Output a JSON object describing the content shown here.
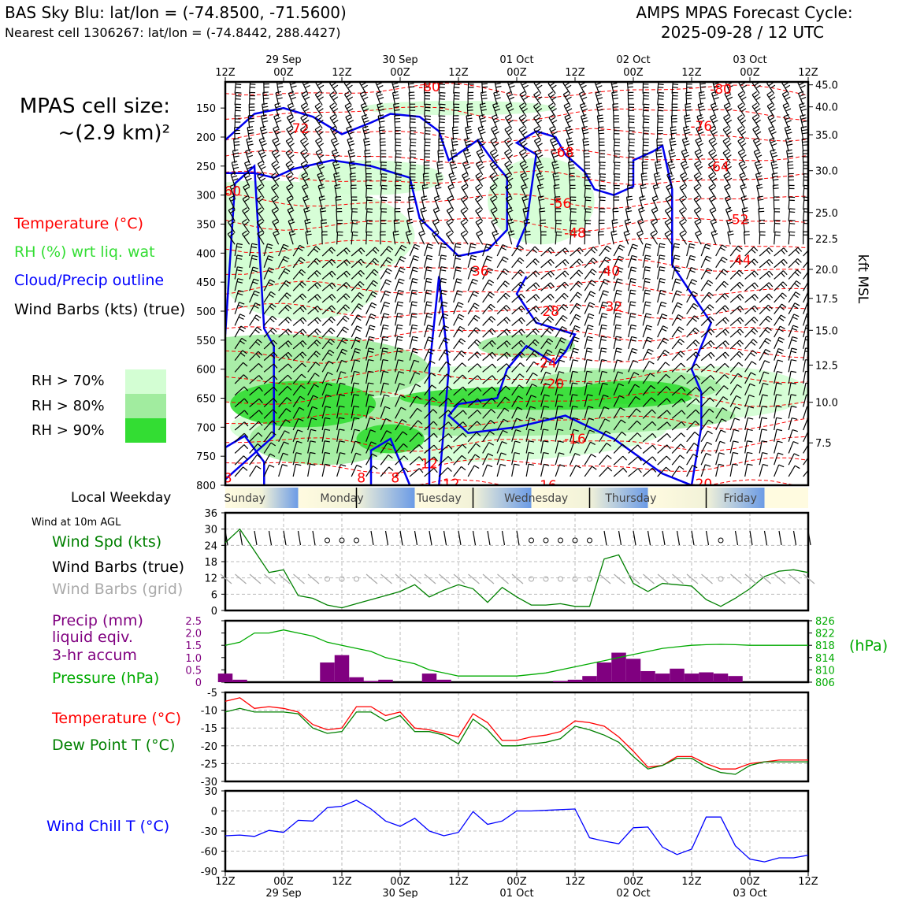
{
  "header": {
    "station": "BAS Sky Blu: lat/lon = (-74.8500, -71.5600)",
    "nearest": "Nearest cell 1306267: lat/lon = (-74.8442, 288.4427)",
    "model_line1": "AMPS MPAS Forecast Cycle:",
    "model_line2": "2025-09-28 / 12 UTC"
  },
  "cell_size": {
    "line1": "MPAS cell size:",
    "line2": "~(2.9 km)²"
  },
  "legend": {
    "temperature": "Temperature (°C)",
    "rh": "RH (%) wrt liq. wat",
    "cloud": "Cloud/Precip outline",
    "wind": "Wind Barbs (kts) (true)",
    "rh70": "RH > 70%",
    "rh80": "RH > 80%",
    "rh90": "RH > 90%",
    "rh70_color": "#d3fed3",
    "rh80_color": "#a1ec9f",
    "rh90_color": "#33dd33"
  },
  "weekday": {
    "label": "Local Weekday",
    "days": [
      "Sunday",
      "Monday",
      "Tuesday",
      "Wednesday",
      "Thursday",
      "Friday"
    ]
  },
  "panel_labels": {
    "wind_at": "Wind at 10m AGL",
    "wind_spd": "Wind Spd (kts)",
    "barbs_true": "Wind Barbs (true)",
    "barbs_grid": "Wind Barbs (grid)",
    "precip1": "Precip (mm)",
    "precip2": "liquid eqiv.",
    "precip3": "3-hr accum",
    "pressure": "Pressure (hPa)",
    "pressure_unit": "(hPa)",
    "temp": "Temperature (°C)",
    "dew": "Dew Point T (°C)",
    "windchill": "Wind Chill T (°C)"
  },
  "time_axis": {
    "hours": [
      "12Z",
      "00Z",
      "12Z",
      "00Z",
      "12Z",
      "00Z",
      "12Z",
      "00Z",
      "12Z",
      "00Z",
      "12Z"
    ],
    "dates": [
      "29 Sep",
      "30 Sep",
      "01 Oct",
      "02 Oct",
      "03 Oct"
    ]
  },
  "chart_data": [
    {
      "type": "heatmap",
      "title": "Time-height cross section",
      "ylabel": "kft MSL",
      "y_pressure_ticks": [
        "150",
        "200",
        "250",
        "300",
        "350",
        "400",
        "450",
        "500",
        "550",
        "600",
        "650",
        "700",
        "750",
        "800"
      ],
      "y_pressure_values": [
        150,
        200,
        250,
        300,
        350,
        400,
        450,
        500,
        550,
        600,
        650,
        700,
        750,
        800
      ],
      "y_kft_ticks": [
        "45.0",
        "40.0",
        "35.0",
        "30.0",
        "25.0",
        "22.5",
        "20.0",
        "17.5",
        "15.0",
        "12.5",
        "10.0",
        "7.5"
      ],
      "y_kft_positions_hpa": [
        110,
        148,
        196,
        258,
        330,
        375,
        428,
        478,
        533,
        593,
        657,
        727
      ],
      "ylim": [
        800,
        105
      ],
      "x_range_hours": [
        0,
        120
      ],
      "temperature_contour_labels": [
        {
          "text": "-80",
          "t": 42,
          "p": 113
        },
        {
          "text": "-80",
          "t": 102,
          "p": 117
        },
        {
          "text": "72",
          "t": 15.5,
          "p": 185
        },
        {
          "text": "-76",
          "t": 98,
          "p": 181
        },
        {
          "text": "-68",
          "t": 69.5,
          "p": 226
        },
        {
          "text": "-64",
          "t": 101.5,
          "p": 251
        },
        {
          "text": "60",
          "t": 1.5,
          "p": 293
        },
        {
          "text": "-56",
          "t": 69,
          "p": 314
        },
        {
          "text": "-52",
          "t": 105.5,
          "p": 342
        },
        {
          "text": "-48",
          "t": 72,
          "p": 365
        },
        {
          "text": "-44",
          "t": 106,
          "p": 412
        },
        {
          "text": "36",
          "t": 52.5,
          "p": 431
        },
        {
          "text": "-40",
          "t": 79,
          "p": 431
        },
        {
          "text": "-32",
          "t": 79.5,
          "p": 492
        },
        {
          "text": "28",
          "t": 67,
          "p": 500
        },
        {
          "text": "-24",
          "t": 66,
          "p": 589
        },
        {
          "text": "-20",
          "t": 67.5,
          "p": 625
        },
        {
          "text": "-16",
          "t": 72,
          "p": 720
        },
        {
          "text": "-12",
          "t": 41.5,
          "p": 763
        },
        {
          "text": "8",
          "t": 0.5,
          "p": 787
        },
        {
          "text": "8",
          "t": 28,
          "p": 787
        },
        {
          "text": "8",
          "t": 35,
          "p": 787
        },
        {
          "text": "-12",
          "t": 46,
          "p": 797
        },
        {
          "text": "-16",
          "t": 66,
          "p": 800
        },
        {
          "text": "-20",
          "t": 98,
          "p": 797
        }
      ]
    },
    {
      "type": "line",
      "title": "Wind at 10m AGL",
      "ylabel": "Wind Spd (kts)",
      "ylim": [
        0,
        36
      ],
      "yticks": [
        "36",
        "30",
        "24",
        "18",
        "12",
        "6",
        "0"
      ],
      "x_hours": [
        0,
        3,
        6,
        9,
        12,
        15,
        18,
        21,
        24,
        27,
        30,
        33,
        36,
        39,
        42,
        45,
        48,
        51,
        54,
        57,
        60,
        63,
        66,
        69,
        72,
        75,
        78,
        81,
        84,
        87,
        90,
        93,
        96,
        99,
        102,
        105,
        108,
        111,
        114,
        117,
        120
      ],
      "series": [
        {
          "name": "Wind Spd (kts)",
          "color": "#008000",
          "values": [
            25,
            30,
            22,
            14,
            15,
            5.5,
            4.5,
            2,
            1,
            2.5,
            4,
            5.5,
            7,
            9.5,
            5,
            7.5,
            9.5,
            8,
            3,
            8.5,
            5,
            2,
            2,
            2.5,
            1.5,
            1.5,
            19,
            20.5,
            10,
            7,
            10,
            9.5,
            9,
            4,
            1.5,
            4.5,
            8,
            12.5,
            14.5,
            15,
            14
          ]
        }
      ]
    },
    {
      "type": "bar",
      "title": "Precip / Pressure",
      "ylabel": "Precip (mm)",
      "ylim": [
        0,
        2.5
      ],
      "yticks": [
        "2.5",
        "2.0",
        "1.5",
        "1.0",
        "0.5",
        "0"
      ],
      "x_hours": [
        0,
        3,
        6,
        9,
        12,
        15,
        18,
        21,
        24,
        27,
        30,
        33,
        36,
        39,
        42,
        45,
        48,
        51,
        54,
        57,
        60,
        63,
        66,
        69,
        72,
        75,
        78,
        81,
        84,
        87,
        90,
        93,
        96,
        99,
        102,
        105,
        108,
        111,
        114,
        117,
        120
      ],
      "precip": [
        0.35,
        0.1,
        0,
        0,
        0,
        0,
        0,
        0.8,
        1.1,
        0.2,
        0.05,
        0.1,
        0,
        0,
        0.35,
        0.1,
        0,
        0,
        0,
        0,
        0,
        0,
        0,
        0.05,
        0.1,
        0.25,
        0.8,
        1.2,
        0.95,
        0.45,
        0.35,
        0.55,
        0.35,
        0.4,
        0.35,
        0.25,
        0,
        0,
        0,
        0,
        0
      ],
      "pressure_ylabel": "(hPa)",
      "pressure_ylim": [
        806,
        826
      ],
      "pressure_yticks": [
        "826",
        "822",
        "818",
        "814",
        "810",
        "806"
      ],
      "series": [
        {
          "name": "Pressure (hPa)",
          "color": "#00aa00",
          "values": [
            818,
            819,
            822,
            822,
            823,
            822,
            821,
            819,
            818,
            817,
            816,
            814,
            813,
            812,
            810,
            809,
            808,
            808,
            808,
            808,
            808,
            808.5,
            809,
            810,
            811,
            812,
            813,
            814,
            815,
            816,
            817,
            817.5,
            818,
            818.2,
            818.3,
            818.2,
            818,
            818,
            818,
            818,
            818
          ]
        }
      ]
    },
    {
      "type": "line",
      "title": "Temperature / Dew Point",
      "ylim": [
        -30,
        -5
      ],
      "yticks": [
        "-5",
        "-10",
        "-15",
        "-20",
        "-25",
        "-30"
      ],
      "x_hours": [
        0,
        3,
        6,
        9,
        12,
        15,
        18,
        21,
        24,
        27,
        30,
        33,
        36,
        39,
        42,
        45,
        48,
        51,
        54,
        57,
        60,
        63,
        66,
        69,
        72,
        75,
        78,
        81,
        84,
        87,
        90,
        93,
        96,
        99,
        102,
        105,
        108,
        111,
        114,
        117,
        120
      ],
      "series": [
        {
          "name": "Temperature (°C)",
          "color": "#ff0000",
          "values": [
            -7.5,
            -6.5,
            -9.5,
            -9,
            -9.5,
            -10.5,
            -14,
            -15.5,
            -15,
            -9,
            -9,
            -11.5,
            -10.5,
            -15,
            -15.5,
            -16.5,
            -17.5,
            -11,
            -13.5,
            -18.5,
            -18.5,
            -17.5,
            -17,
            -16,
            -13,
            -13.5,
            -14.5,
            -17.5,
            -21.5,
            -26,
            -25.5,
            -23,
            -23,
            -25,
            -26.5,
            -26.5,
            -25,
            -24.5,
            -24,
            -24,
            -24
          ]
        },
        {
          "name": "Dew Point T (°C)",
          "color": "#008000",
          "values": [
            -10.5,
            -9.5,
            -10.5,
            -10.5,
            -10.5,
            -11,
            -15,
            -16.5,
            -16,
            -10.5,
            -10.5,
            -13,
            -11.5,
            -16,
            -16,
            -17,
            -19.5,
            -12.5,
            -15.5,
            -20,
            -20,
            -19.5,
            -19,
            -18,
            -14.5,
            -15.5,
            -17,
            -19,
            -23,
            -26.5,
            -25.5,
            -23.5,
            -23.5,
            -26,
            -27.5,
            -28,
            -25.5,
            -24.5,
            -24.5,
            -24.5,
            -24.5
          ]
        }
      ]
    },
    {
      "type": "line",
      "title": "Wind Chill",
      "ylim": [
        -90,
        30
      ],
      "yticks": [
        "30",
        "0",
        "-30",
        "-60",
        "-90"
      ],
      "x_hours": [
        0,
        3,
        6,
        9,
        12,
        15,
        18,
        21,
        24,
        27,
        30,
        33,
        36,
        39,
        42,
        45,
        48,
        51,
        54,
        57,
        60,
        63,
        66,
        69,
        72,
        75,
        78,
        81,
        84,
        87,
        90,
        93,
        96,
        99,
        102,
        105,
        108,
        111,
        114,
        117,
        120
      ],
      "series": [
        {
          "name": "Wind Chill T (°C)",
          "color": "#0000ff",
          "values": [
            -37,
            -36,
            -38,
            -29,
            -32,
            -14,
            -15,
            5,
            7,
            16,
            3,
            -15,
            -23,
            -11,
            -30,
            -37,
            -32,
            -1,
            -20,
            -15,
            0,
            0,
            1,
            2,
            3,
            -40,
            -45,
            -49,
            -25,
            -24,
            -54,
            -65,
            -57,
            -9,
            -9,
            -52,
            -72,
            -76,
            -70,
            -70,
            -66
          ]
        }
      ]
    }
  ]
}
